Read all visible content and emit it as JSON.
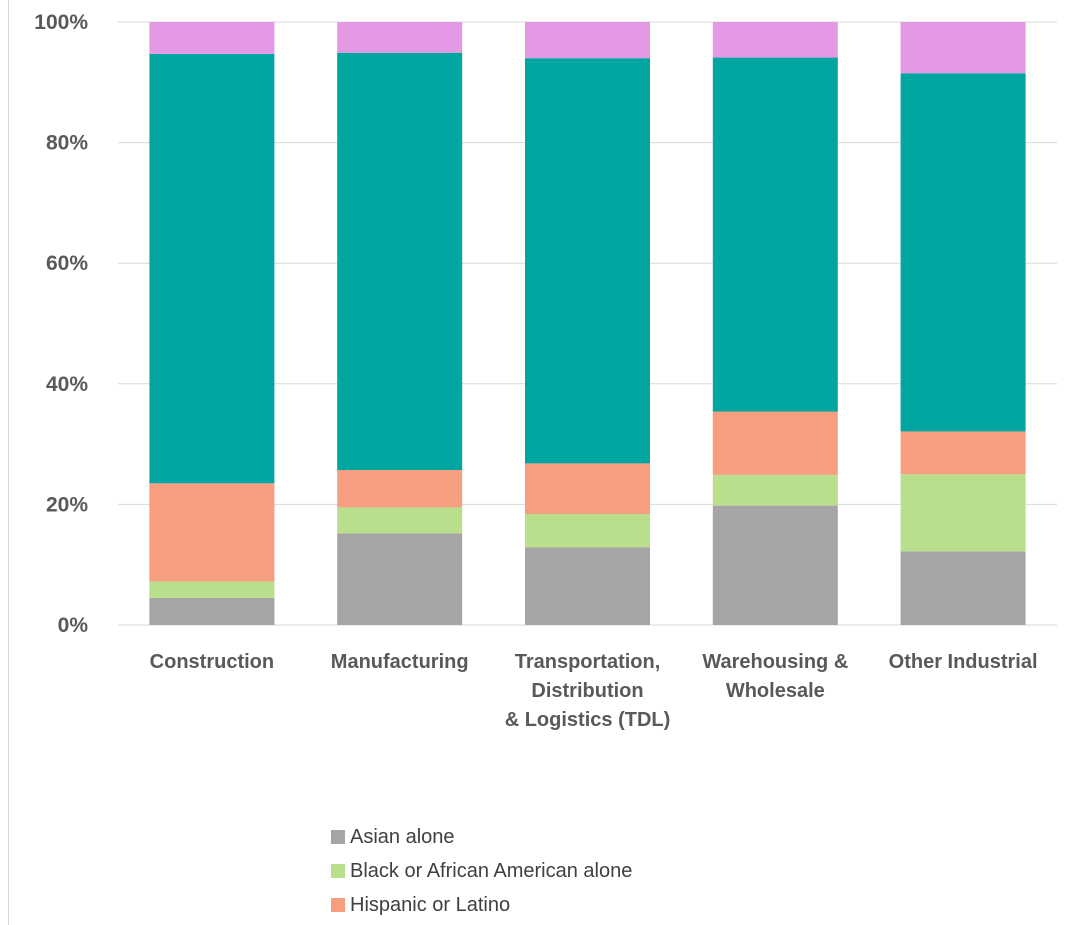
{
  "chart_data": {
    "type": "bar",
    "stacked": true,
    "percent": true,
    "categories": [
      [
        "Construction"
      ],
      [
        "Manufacturing"
      ],
      [
        "Transportation,",
        "Distribution",
        "& Logistics (TDL)"
      ],
      [
        "Warehousing &",
        "Wholesale"
      ],
      [
        "Other Industrial"
      ]
    ],
    "series": [
      {
        "name": "Asian alone",
        "color": "#a5a5a5",
        "values": [
          4.5,
          15.2,
          12.9,
          19.8,
          12.2
        ]
      },
      {
        "name": "Black or African American alone",
        "color": "#b9de8c",
        "values": [
          2.7,
          4.3,
          5.5,
          5.1,
          12.8
        ]
      },
      {
        "name": "Hispanic or Latino",
        "color": "#f59e80",
        "values": [
          16.3,
          6.2,
          8.4,
          10.5,
          7.1
        ]
      },
      {
        "name": "",
        "color": "#00a69f",
        "values": [
          71.2,
          69.2,
          67.2,
          58.7,
          59.4
        ]
      },
      {
        "name": "",
        "color": "#e499e4",
        "values": [
          5.3,
          5.1,
          6.0,
          5.9,
          8.5
        ]
      }
    ],
    "y_ticks": [
      "0%",
      "20%",
      "40%",
      "60%",
      "80%",
      "100%"
    ],
    "ylim": [
      0,
      100
    ],
    "grid": true,
    "legend_position": "bottom",
    "title": "",
    "xlabel": "",
    "ylabel": ""
  },
  "legend": {
    "items": [
      "Asian alone",
      "Black or African American alone",
      "Hispanic or Latino"
    ],
    "colors": [
      "#a5a5a5",
      "#b9de8c",
      "#f59e80"
    ]
  }
}
